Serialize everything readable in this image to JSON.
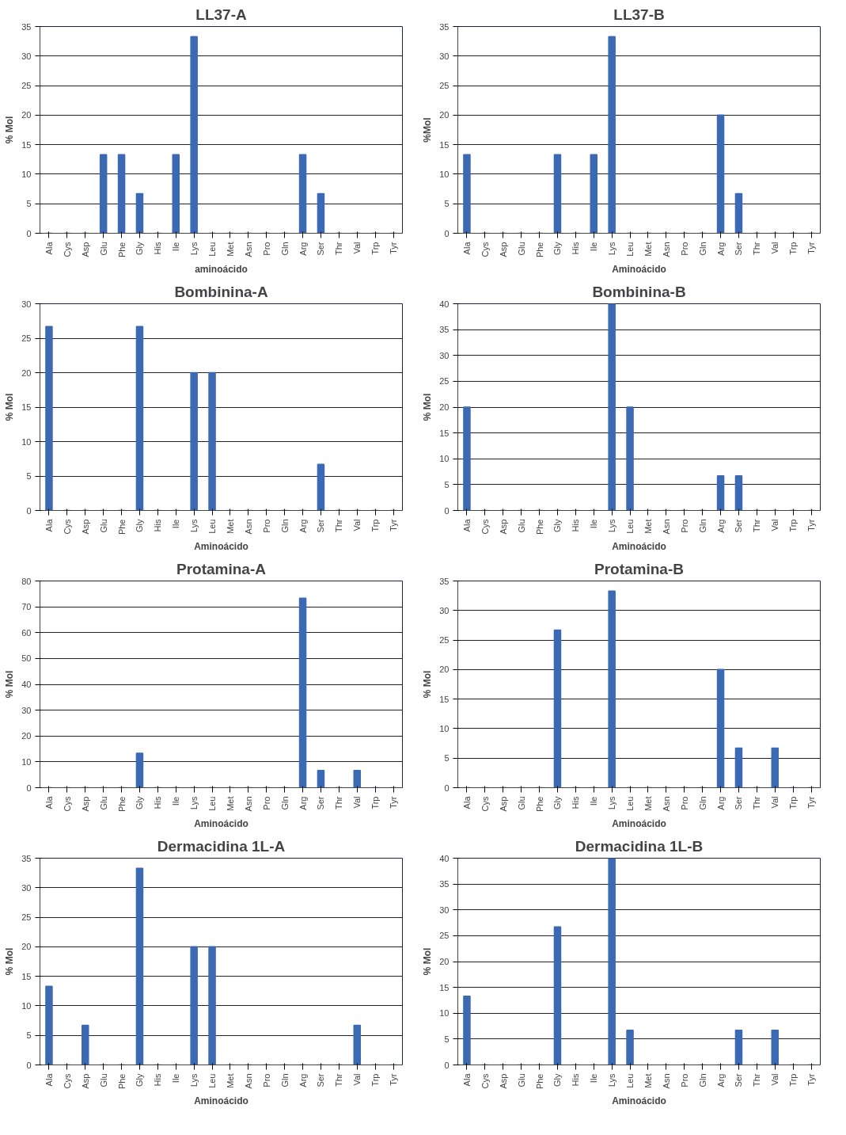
{
  "chart_data": [
    {
      "type": "bar",
      "title": "LL37-A",
      "xlabel": "aminoácido",
      "ylabel": "% Mol",
      "categories": [
        "Ala",
        "Cys",
        "Asp",
        "Glu",
        "Phe",
        "Gly",
        "His",
        "Ile",
        "Lys",
        "Leu",
        "Met",
        "Asn",
        "Pro",
        "Gln",
        "Arg",
        "Ser",
        "Thr",
        "Val",
        "Trp",
        "Tyr"
      ],
      "values": [
        0,
        0,
        0,
        13.3,
        13.3,
        6.7,
        0,
        13.3,
        33.3,
        0,
        0,
        0,
        0,
        0,
        13.3,
        6.7,
        0,
        0,
        0,
        0
      ],
      "color": "#3b69b3",
      "ylim": [
        0,
        35
      ],
      "yticks": [
        0,
        5,
        10,
        15,
        20,
        25,
        30,
        35
      ],
      "grid": "y"
    },
    {
      "type": "bar",
      "title": "LL37-B",
      "xlabel": "Aminoácido",
      "ylabel": "%Mol",
      "categories": [
        "Ala",
        "Cys",
        "Asp",
        "Glu",
        "Phe",
        "Gly",
        "His",
        "Ile",
        "Lys",
        "Leu",
        "Met",
        "Asn",
        "Pro",
        "Gln",
        "Arg",
        "Ser",
        "Thr",
        "Val",
        "Trp",
        "Tyr"
      ],
      "values": [
        13.3,
        0,
        0,
        0,
        0,
        13.3,
        0,
        13.3,
        33.3,
        0,
        0,
        0,
        0,
        0,
        20,
        6.7,
        0,
        0,
        0,
        0
      ],
      "color": "#3b69b3",
      "ylim": [
        0,
        35
      ],
      "yticks": [
        0,
        5,
        10,
        15,
        20,
        25,
        30,
        35
      ],
      "grid": "y"
    },
    {
      "type": "bar",
      "title": "Bombinina-A",
      "xlabel": "Aminoácido",
      "ylabel": "% Mol",
      "categories": [
        "Ala",
        "Cys",
        "Asp",
        "Glu",
        "Phe",
        "Gly",
        "His",
        "Ile",
        "Lys",
        "Leu",
        "Met",
        "Asn",
        "Pro",
        "Gln",
        "Arg",
        "Ser",
        "Thr",
        "Val",
        "Trp",
        "Tyr"
      ],
      "values": [
        26.7,
        0,
        0,
        0,
        0,
        26.7,
        0,
        0,
        20,
        20,
        0,
        0,
        0,
        0,
        0,
        6.7,
        0,
        0,
        0,
        0
      ],
      "color": "#3b69b3",
      "ylim": [
        0,
        30
      ],
      "yticks": [
        0,
        5,
        10,
        15,
        20,
        25,
        30
      ],
      "grid": "y"
    },
    {
      "type": "bar",
      "title": "Bombinina-B",
      "xlabel": "Aminoácido",
      "ylabel": "% Mol",
      "categories": [
        "Ala",
        "Cys",
        "Asp",
        "Glu",
        "Phe",
        "Gly",
        "His",
        "Ile",
        "Lys",
        "Leu",
        "Met",
        "Asn",
        "Pro",
        "Gln",
        "Arg",
        "Ser",
        "Thr",
        "Val",
        "Trp",
        "Tyr"
      ],
      "values": [
        20,
        0,
        0,
        0,
        0,
        0,
        0,
        0,
        40,
        20,
        0,
        0,
        0,
        0,
        6.7,
        6.7,
        0,
        0,
        0,
        0
      ],
      "color": "#3b69b3",
      "ylim": [
        0,
        40
      ],
      "yticks": [
        0,
        5,
        10,
        15,
        20,
        25,
        30,
        35,
        40
      ],
      "grid": "y"
    },
    {
      "type": "bar",
      "title": "Protamina-A",
      "xlabel": "Aminoácido",
      "ylabel": "% Mol",
      "categories": [
        "Ala",
        "Cys",
        "Asp",
        "Glu",
        "Phe",
        "Gly",
        "His",
        "Ile",
        "Lys",
        "Leu",
        "Met",
        "Asn",
        "Pro",
        "Gln",
        "Arg",
        "Ser",
        "Thr",
        "Val",
        "Trp",
        "Tyr"
      ],
      "values": [
        0,
        0,
        0,
        0,
        0,
        13.3,
        0,
        0,
        0,
        0,
        0,
        0,
        0,
        0,
        73.3,
        6.7,
        0,
        6.7,
        0,
        0
      ],
      "color": "#3b69b3",
      "ylim": [
        0,
        80
      ],
      "yticks": [
        0,
        10,
        20,
        30,
        40,
        50,
        60,
        70,
        80
      ],
      "grid": "y"
    },
    {
      "type": "bar",
      "title": "Protamina-B",
      "xlabel": "Aminoácido",
      "ylabel": "% Mol",
      "categories": [
        "Ala",
        "Cys",
        "Asp",
        "Glu",
        "Phe",
        "Gly",
        "His",
        "Ile",
        "Lys",
        "Leu",
        "Met",
        "Asn",
        "Pro",
        "Gln",
        "Arg",
        "Ser",
        "Thr",
        "Val",
        "Trp",
        "Tyr"
      ],
      "values": [
        0,
        0,
        0,
        0,
        0,
        26.7,
        0,
        0,
        33.3,
        0,
        0,
        0,
        0,
        0,
        20,
        6.7,
        0,
        6.7,
        0,
        0
      ],
      "color": "#3b69b3",
      "ylim": [
        0,
        35
      ],
      "yticks": [
        0,
        5,
        10,
        15,
        20,
        25,
        30,
        35
      ],
      "grid": "y"
    },
    {
      "type": "bar",
      "title": "Dermacidina 1L-A",
      "xlabel": "Aminoácido",
      "ylabel": "% Mol",
      "categories": [
        "Ala",
        "Cys",
        "Asp",
        "Glu",
        "Phe",
        "Gly",
        "His",
        "Ile",
        "Lys",
        "Leu",
        "Met",
        "Asn",
        "Pro",
        "Gln",
        "Arg",
        "Ser",
        "Thr",
        "Val",
        "Trp",
        "Tyr"
      ],
      "values": [
        13.3,
        0,
        6.7,
        0,
        0,
        33.3,
        0,
        0,
        20,
        20,
        0,
        0,
        0,
        0,
        0,
        0,
        0,
        6.7,
        0,
        0
      ],
      "color": "#3b69b3",
      "ylim": [
        0,
        35
      ],
      "yticks": [
        0,
        5,
        10,
        15,
        20,
        25,
        30,
        35
      ],
      "grid": "y"
    },
    {
      "type": "bar",
      "title": "Dermacidina 1L-B",
      "xlabel": "Aminoácido",
      "ylabel": "% Mol",
      "categories": [
        "Ala",
        "Cys",
        "Asp",
        "Glu",
        "Phe",
        "Gly",
        "His",
        "Ile",
        "Lys",
        "Leu",
        "Met",
        "Asn",
        "Pro",
        "Gln",
        "Arg",
        "Ser",
        "Thr",
        "Val",
        "Trp",
        "Tyr"
      ],
      "values": [
        13.3,
        0,
        0,
        0,
        0,
        26.7,
        0,
        0,
        40,
        6.7,
        null,
        0,
        0,
        0,
        0,
        6.7,
        0,
        6.7,
        0,
        0
      ],
      "color": "#3b69b3",
      "ylim": [
        0,
        40
      ],
      "yticks": [
        0,
        5,
        10,
        15,
        20,
        25,
        30,
        35,
        40
      ],
      "grid": "y"
    }
  ]
}
